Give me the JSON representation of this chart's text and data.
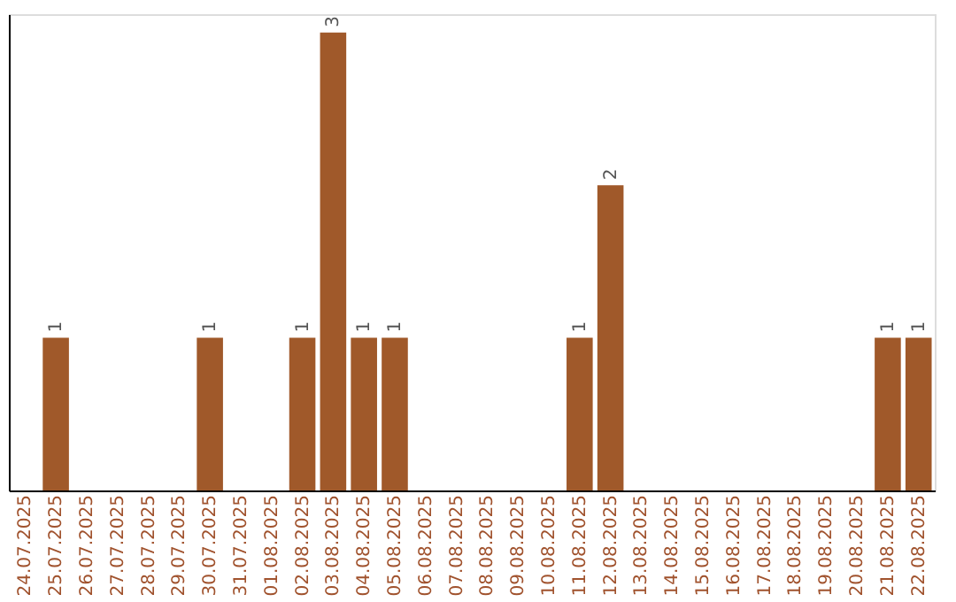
{
  "chart_data": {
    "type": "bar",
    "categories": [
      "24.07.2025",
      "25.07.2025",
      "26.07.2025",
      "27.07.2025",
      "28.07.2025",
      "29.07.2025",
      "30.07.2025",
      "31.07.2025",
      "01.08.2025",
      "02.08.2025",
      "03.08.2025",
      "04.08.2025",
      "05.08.2025",
      "06.08.2025",
      "07.08.2025",
      "08.08.2025",
      "09.08.2025",
      "10.08.2025",
      "11.08.2025",
      "12.08.2025",
      "13.08.2025",
      "14.08.2025",
      "15.08.2025",
      "16.08.2025",
      "17.08.2025",
      "18.08.2025",
      "19.08.2025",
      "20.08.2025",
      "21.08.2025",
      "22.08.2025"
    ],
    "values": [
      0,
      1,
      0,
      0,
      0,
      0,
      1,
      0,
      0,
      1,
      3,
      1,
      1,
      0,
      0,
      0,
      0,
      0,
      1,
      2,
      0,
      0,
      0,
      0,
      0,
      0,
      0,
      0,
      1,
      1
    ],
    "value_labels": [
      null,
      "1",
      null,
      null,
      null,
      null,
      "1",
      null,
      null,
      "1",
      "3",
      "1",
      "1",
      null,
      null,
      null,
      null,
      null,
      "1",
      "2",
      null,
      null,
      null,
      null,
      null,
      null,
      null,
      null,
      "1",
      "1"
    ],
    "color": "#a0592a",
    "tick_labels": "x",
    "grid": false
  }
}
